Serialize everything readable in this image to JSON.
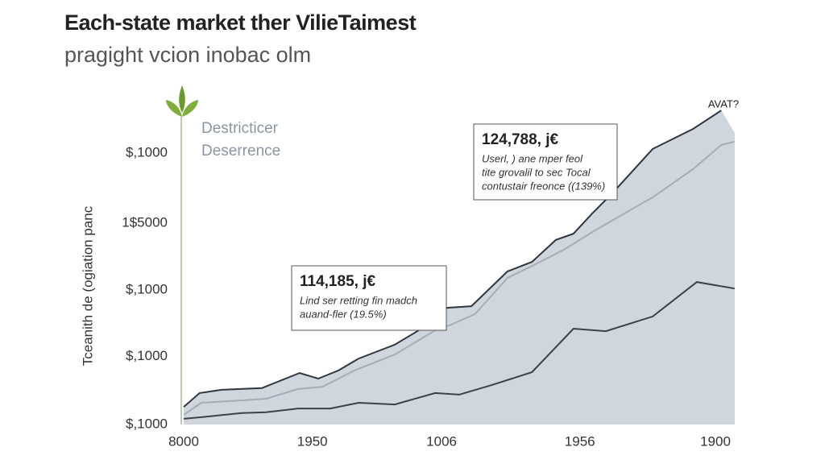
{
  "chart_data": {
    "type": "area",
    "title": "Each-state market ther VilieTaimest",
    "subtitle": "pragight vcion inobac olm",
    "y_label": "Tceanith de (ogiation panc",
    "corner_label": "AVAT?",
    "notes": [
      "Destricticer",
      "Deserrence"
    ],
    "xlim": [
      -1,
      104
    ],
    "ylim": [
      0,
      118
    ],
    "xticks": [
      {
        "value": 0,
        "label": "8000"
      },
      {
        "value": 24.2,
        "label": "1950"
      },
      {
        "value": 48.5,
        "label": "1006"
      },
      {
        "value": 74.5,
        "label": "1956"
      },
      {
        "value": 100,
        "label": "1900"
      }
    ],
    "yticks": [
      {
        "value": 0,
        "label": "$,1000"
      },
      {
        "value": 25,
        "label": "$,1000"
      },
      {
        "value": 49.6,
        "label": "$,1000"
      },
      {
        "value": 74.2,
        "label": "1$5000"
      },
      {
        "value": 100,
        "label": "$,1000"
      }
    ],
    "series": [
      {
        "color": "#2f3640",
        "fill": "#cfd6de",
        "x": [
          0,
          3,
          7.1,
          14.7,
          21.8,
          25.3,
          29.1,
          32.9,
          39.7,
          44.2,
          49.5,
          54.1,
          60.9,
          65.5,
          70,
          73.3,
          76.8,
          80.6,
          88.2,
          95.8,
          101.1
        ],
        "values": [
          6.5,
          11.6,
          12.8,
          13.4,
          19,
          16.9,
          19.9,
          24.3,
          29.4,
          34.7,
          43,
          43.6,
          56.4,
          59.9,
          68,
          70.3,
          77.7,
          85.2,
          101.5,
          108.9,
          115.7
        ]
      },
      {
        "color": "#a6adb6",
        "x": [
          0,
          3.3,
          10.9,
          15.5,
          21.5,
          26.1,
          32.1,
          39.7,
          47.3,
          50.3,
          54.8,
          60.9,
          65.5,
          71.5,
          77.6,
          88.2,
          95.8,
          101.1,
          103.6
        ],
        "values": [
          3.6,
          8,
          8.9,
          9.5,
          13.1,
          13.9,
          19.9,
          25.8,
          34.7,
          36.8,
          40.7,
          54,
          58.4,
          64.4,
          71.8,
          83.7,
          94.1,
          103,
          104.2
        ]
      },
      {
        "color": "#3c4148",
        "x": [
          0,
          4.8,
          10.9,
          15.5,
          21.5,
          27.6,
          32.9,
          39.7,
          47.3,
          51.8,
          57.9,
          65.5,
          73.3,
          79.4,
          88.2,
          96.5,
          103.6
        ],
        "values": [
          2.1,
          3,
          4.2,
          4.5,
          5.9,
          5.9,
          8,
          7.4,
          11.6,
          11,
          14.5,
          19.3,
          35.3,
          34.4,
          39.8,
          52.5,
          50.1
        ]
      }
    ],
    "annotations": [
      {
        "title": "124,788, j€",
        "lines": [
          "Userl, ) ane mper feol",
          "tite grovalil to sec Tocal",
          "contustair freonce ((139%)"
        ]
      },
      {
        "title": "114,185, j€",
        "lines": [
          "Lind ser retting fin madch",
          "auand-fler (19.5%)"
        ]
      }
    ]
  }
}
